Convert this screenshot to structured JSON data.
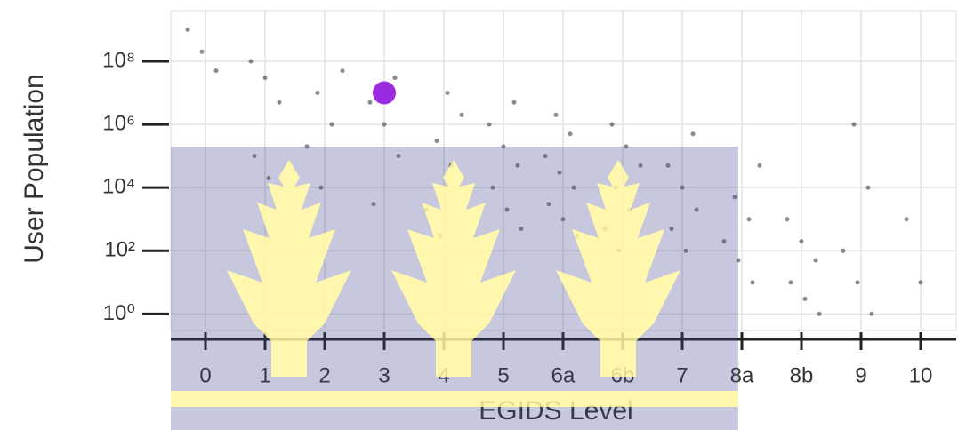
{
  "chart_data": {
    "type": "scatter",
    "x_label": "EGIDS Level",
    "y_label": "User Population",
    "categories": [
      "0",
      "1",
      "2",
      "3",
      "4",
      "5",
      "6a",
      "6b",
      "7",
      "8a",
      "8b",
      "9",
      "10"
    ],
    "log_y": true,
    "grid": true,
    "ylim": [
      0.3,
      4000000000
    ],
    "yticks": [
      {
        "value": 1,
        "label": "10⁰"
      },
      {
        "value": 100,
        "label": "10²"
      },
      {
        "value": 10000,
        "label": "10⁴"
      },
      {
        "value": 1000000,
        "label": "10⁶"
      },
      {
        "value": 100000000,
        "label": "10⁸"
      }
    ],
    "color": "#2a2a3a",
    "x": [
      "0",
      "0",
      "0",
      "1",
      "1",
      "1",
      "1",
      "1",
      "2",
      "2",
      "2",
      "2",
      "2",
      "3",
      "3",
      "3",
      "3",
      "3",
      "4",
      "4",
      "4",
      "4",
      "4",
      "4",
      "5",
      "5",
      "5",
      "5",
      "5",
      "5",
      "5",
      "6a",
      "6a",
      "6a",
      "6a",
      "6a",
      "6a",
      "6a",
      "6a",
      "6b",
      "6b",
      "6b",
      "6b",
      "6b",
      "6b",
      "6b",
      "7",
      "7",
      "7",
      "7",
      "7",
      "7",
      "8a",
      "8a",
      "8a",
      "8a",
      "8a",
      "8a",
      "8b",
      "8b",
      "8b",
      "8b",
      "8b",
      "8b",
      "9",
      "9",
      "9",
      "9",
      "9",
      "10",
      "10"
    ],
    "values": [
      1000000000,
      200000000,
      50000000,
      100000000,
      30000000,
      5000000,
      100000,
      20000,
      50000000,
      10000000,
      1000000,
      200000,
      10000,
      30000000,
      5000000,
      1000000,
      100000,
      3000,
      10000000,
      2000000,
      300000,
      50000,
      2000,
      300,
      5000000,
      1000000,
      200000,
      50000,
      10000,
      2000,
      500,
      2000000,
      500000,
      100000,
      30000,
      10000,
      3000,
      1000,
      300,
      1000000,
      200000,
      50000,
      10000,
      2000,
      500,
      100,
      500000,
      50000,
      10000,
      2000,
      500,
      100,
      50000,
      5000,
      1000,
      200,
      50,
      10,
      1000,
      200,
      50,
      10,
      3,
      1,
      1000000,
      10000,
      100,
      10,
      1,
      1000,
      10
    ],
    "highlight_x": "3",
    "highlight_value": 10000000,
    "highlight_color": "#9b2be0"
  }
}
